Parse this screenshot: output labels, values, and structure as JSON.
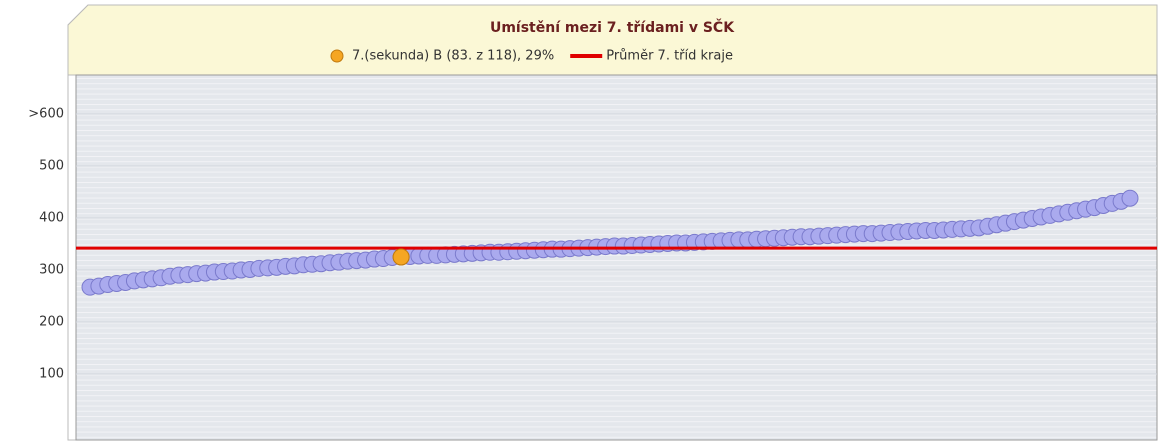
{
  "chart_data": {
    "type": "scatter",
    "title": "Umístění mezi 7. třídami v SČK",
    "ylim": [
      -27,
      675
    ],
    "yticks": [
      100,
      200,
      300,
      400,
      500,
      {
        "value": 600,
        "label": ">600"
      }
    ],
    "grid": true,
    "series": [
      {
        "color": "#aaaaee",
        "values": [
          267,
          269,
          272,
          274,
          276,
          279,
          281,
          283,
          285,
          288,
          290,
          291,
          293,
          294,
          296,
          297,
          298,
          300,
          301,
          303,
          304,
          305,
          307,
          308,
          310,
          311,
          312,
          314,
          315,
          317,
          318,
          319,
          321,
          322,
          324,
          null,
          326,
          327,
          328,
          328,
          329,
          330,
          331,
          332,
          333,
          334,
          334,
          335,
          336,
          337,
          338,
          339,
          340,
          340,
          341,
          342,
          343,
          344,
          345,
          346,
          346,
          347,
          348,
          349,
          350,
          351,
          352,
          352,
          353,
          354,
          355,
          356,
          357,
          358,
          358,
          359,
          360,
          361,
          362,
          363,
          364,
          364,
          365,
          366,
          367,
          368,
          369,
          370,
          370,
          371,
          372,
          373,
          374,
          375,
          376,
          376,
          377,
          378,
          379,
          380,
          381,
          384,
          387,
          390,
          393,
          396,
          399,
          402,
          405,
          408,
          411,
          414,
          417,
          420,
          424,
          428,
          432,
          438
        ]
      },
      {
        "name": "7.(sekunda) B (83. z 118), 29%",
        "color": "#f5a623",
        "values": [
          null,
          null,
          null,
          null,
          null,
          null,
          null,
          null,
          null,
          null,
          null,
          null,
          null,
          null,
          null,
          null,
          null,
          null,
          null,
          null,
          null,
          null,
          null,
          null,
          null,
          null,
          null,
          null,
          null,
          null,
          null,
          null,
          null,
          null,
          null,
          325,
          null,
          null,
          null,
          null,
          null,
          null,
          null,
          null,
          null,
          null,
          null,
          null,
          null,
          null,
          null,
          null,
          null,
          null,
          null,
          null,
          null,
          null,
          null,
          null,
          null,
          null,
          null,
          null,
          null,
          null,
          null,
          null,
          null,
          null,
          null,
          null,
          null,
          null,
          null,
          null,
          null,
          null,
          null,
          null,
          null,
          null,
          null,
          null,
          null,
          null,
          null,
          null,
          null,
          null,
          null,
          null,
          null,
          null,
          null,
          null,
          null,
          null,
          null,
          null,
          null,
          null,
          null,
          null,
          null,
          null,
          null,
          null,
          null,
          null,
          null,
          null,
          null,
          null,
          null,
          null,
          null,
          null
        ]
      }
    ],
    "average": {
      "name": "Průměr 7. tříd kraje",
      "color": "#e00000",
      "value": 342
    }
  }
}
